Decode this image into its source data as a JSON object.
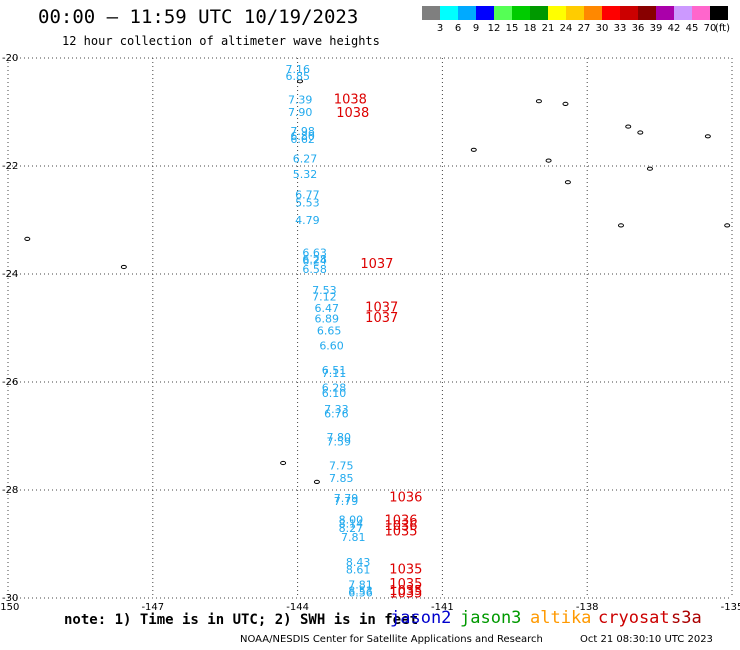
{
  "header": {
    "title": "00:00 – 11:59 UTC 10/19/2023",
    "subtitle": "12 hour collection of altimeter wave heights"
  },
  "legend": {
    "unit": "(ft)",
    "bins": [
      {
        "label": "3",
        "color": "#7f7f7f"
      },
      {
        "label": "6",
        "color": "#00ffff"
      },
      {
        "label": "9",
        "color": "#00aaff"
      },
      {
        "label": "12",
        "color": "#0000ff"
      },
      {
        "label": "15",
        "color": "#55ff55"
      },
      {
        "label": "18",
        "color": "#00cc00"
      },
      {
        "label": "21",
        "color": "#009900"
      },
      {
        "label": "24",
        "color": "#ffff00"
      },
      {
        "label": "27",
        "color": "#ffcc00"
      },
      {
        "label": "30",
        "color": "#ff8800"
      },
      {
        "label": "33",
        "color": "#ff0000"
      },
      {
        "label": "36",
        "color": "#cc0000"
      },
      {
        "label": "39",
        "color": "#880000"
      },
      {
        "label": "42",
        "color": "#aa00aa"
      },
      {
        "label": "45",
        "color": "#cc99ff"
      },
      {
        "label": "70",
        "color": "#ff66cc"
      },
      {
        "label": "",
        "color": "#000000"
      }
    ]
  },
  "map": {
    "lon_range": [
      -150,
      -135
    ],
    "lat_range": [
      -30,
      -20
    ],
    "lon_ticks": [
      "-150",
      "-147",
      "-144",
      "-141",
      "-138",
      "-135"
    ],
    "lat_ticks": [
      "-20",
      "-22",
      "-24",
      "-26",
      "-28",
      "-30"
    ],
    "grid": "dotted",
    "wave_color": "#22aaee",
    "pressure_color": "#dd0000",
    "wave_labels": [
      {
        "lon": -144.25,
        "lat": -20.2,
        "value": "7.16"
      },
      {
        "lon": -144.25,
        "lat": -20.33,
        "value": "6.85"
      },
      {
        "lon": -144.2,
        "lat": -20.77,
        "value": "7.39"
      },
      {
        "lon": -144.2,
        "lat": -21.0,
        "value": "7.90"
      },
      {
        "lon": -144.15,
        "lat": -21.35,
        "value": "7.98"
      },
      {
        "lon": -144.15,
        "lat": -21.44,
        "value": "6.80"
      },
      {
        "lon": -144.15,
        "lat": -21.5,
        "value": "6.62"
      },
      {
        "lon": -144.1,
        "lat": -21.86,
        "value": "6.27"
      },
      {
        "lon": -144.1,
        "lat": -22.15,
        "value": "5.32"
      },
      {
        "lon": -144.05,
        "lat": -22.53,
        "value": "6.77"
      },
      {
        "lon": -144.05,
        "lat": -22.68,
        "value": "5.53"
      },
      {
        "lon": -144.05,
        "lat": -23.0,
        "value": "4.79"
      },
      {
        "lon": -143.9,
        "lat": -23.6,
        "value": "6.63"
      },
      {
        "lon": -143.9,
        "lat": -23.72,
        "value": "6.28"
      },
      {
        "lon": -143.9,
        "lat": -23.75,
        "value": "6.24"
      },
      {
        "lon": -143.9,
        "lat": -23.91,
        "value": "6.58"
      },
      {
        "lon": -143.7,
        "lat": -24.3,
        "value": "7.53"
      },
      {
        "lon": -143.7,
        "lat": -24.42,
        "value": "7.12"
      },
      {
        "lon": -143.65,
        "lat": -24.63,
        "value": "6.47"
      },
      {
        "lon": -143.65,
        "lat": -24.82,
        "value": "6.89"
      },
      {
        "lon": -143.6,
        "lat": -25.05,
        "value": "6.65"
      },
      {
        "lon": -143.55,
        "lat": -25.32,
        "value": "6.60"
      },
      {
        "lon": -143.5,
        "lat": -25.78,
        "value": "6.51"
      },
      {
        "lon": -143.5,
        "lat": -25.83,
        "value": "7.11"
      },
      {
        "lon": -143.5,
        "lat": -26.1,
        "value": "6.28"
      },
      {
        "lon": -143.5,
        "lat": -26.2,
        "value": "6.10"
      },
      {
        "lon": -143.45,
        "lat": -26.5,
        "value": "7.33"
      },
      {
        "lon": -143.45,
        "lat": -26.58,
        "value": "6.76"
      },
      {
        "lon": -143.4,
        "lat": -27.02,
        "value": "7.80"
      },
      {
        "lon": -143.4,
        "lat": -27.1,
        "value": "7.59"
      },
      {
        "lon": -143.35,
        "lat": -27.55,
        "value": "7.75"
      },
      {
        "lon": -143.35,
        "lat": -27.78,
        "value": "7.85"
      },
      {
        "lon": -143.25,
        "lat": -28.15,
        "value": "7.79"
      },
      {
        "lon": -143.25,
        "lat": -28.2,
        "value": "7.79"
      },
      {
        "lon": -143.15,
        "lat": -28.55,
        "value": "8.00"
      },
      {
        "lon": -143.15,
        "lat": -28.62,
        "value": "8.14"
      },
      {
        "lon": -143.15,
        "lat": -28.7,
        "value": "8.27"
      },
      {
        "lon": -143.1,
        "lat": -28.87,
        "value": "7.81"
      },
      {
        "lon": -143.0,
        "lat": -29.33,
        "value": "8.43"
      },
      {
        "lon": -143.0,
        "lat": -29.47,
        "value": "8.61"
      },
      {
        "lon": -142.95,
        "lat": -29.75,
        "value": "7.81"
      },
      {
        "lon": -142.95,
        "lat": -29.86,
        "value": "8.53"
      },
      {
        "lon": -142.95,
        "lat": -29.9,
        "value": "6.56"
      }
    ],
    "pressure_labels": [
      {
        "lon": -143.25,
        "lat": -20.75,
        "value": "1038"
      },
      {
        "lon": -143.2,
        "lat": -21.0,
        "value": "1038"
      },
      {
        "lon": -142.7,
        "lat": -23.8,
        "value": "1037"
      },
      {
        "lon": -142.6,
        "lat": -24.6,
        "value": "1037"
      },
      {
        "lon": -142.6,
        "lat": -24.8,
        "value": "1037"
      },
      {
        "lon": -142.1,
        "lat": -28.12,
        "value": "1036"
      },
      {
        "lon": -142.2,
        "lat": -28.55,
        "value": "1036"
      },
      {
        "lon": -142.2,
        "lat": -28.65,
        "value": "1036"
      },
      {
        "lon": -142.2,
        "lat": -28.75,
        "value": "1035"
      },
      {
        "lon": -142.1,
        "lat": -29.45,
        "value": "1035"
      },
      {
        "lon": -142.1,
        "lat": -29.72,
        "value": "1035"
      },
      {
        "lon": -142.1,
        "lat": -29.85,
        "value": "1035"
      },
      {
        "lon": -142.1,
        "lat": -29.9,
        "value": "1035"
      }
    ],
    "islands": [
      {
        "lon": -149.6,
        "lat": -23.35
      },
      {
        "lon": -147.6,
        "lat": -23.87
      },
      {
        "lon": -143.95,
        "lat": -20.43
      },
      {
        "lon": -140.35,
        "lat": -21.7
      },
      {
        "lon": -138.8,
        "lat": -21.9
      },
      {
        "lon": -138.4,
        "lat": -22.3
      },
      {
        "lon": -139.0,
        "lat": -20.8
      },
      {
        "lon": -138.45,
        "lat": -20.85
      },
      {
        "lon": -137.15,
        "lat": -21.27
      },
      {
        "lon": -136.9,
        "lat": -21.38
      },
      {
        "lon": -136.7,
        "lat": -22.05
      },
      {
        "lon": -135.5,
        "lat": -21.45
      },
      {
        "lon": -137.3,
        "lat": -23.1
      },
      {
        "lon": -135.1,
        "lat": -23.1
      },
      {
        "lon": -144.3,
        "lat": -27.5
      },
      {
        "lon": -143.6,
        "lat": -27.85
      }
    ]
  },
  "footer": {
    "note": "note: 1) Time is in UTC; 2) SWH is in feet",
    "missions": [
      {
        "label": "jason2",
        "color": "#0000cc"
      },
      {
        "label": "jason3",
        "color": "#009900"
      },
      {
        "label": "altika",
        "color": "#ff9900"
      },
      {
        "label": "cryosat",
        "color": "#cc0000"
      },
      {
        "label": "s3a",
        "color": "#aa0000"
      }
    ],
    "credit": "NOAA/NESDIS Center for Satellite Applications and Research",
    "timestamp": "Oct 21 08:30:10 UTC 2023"
  }
}
